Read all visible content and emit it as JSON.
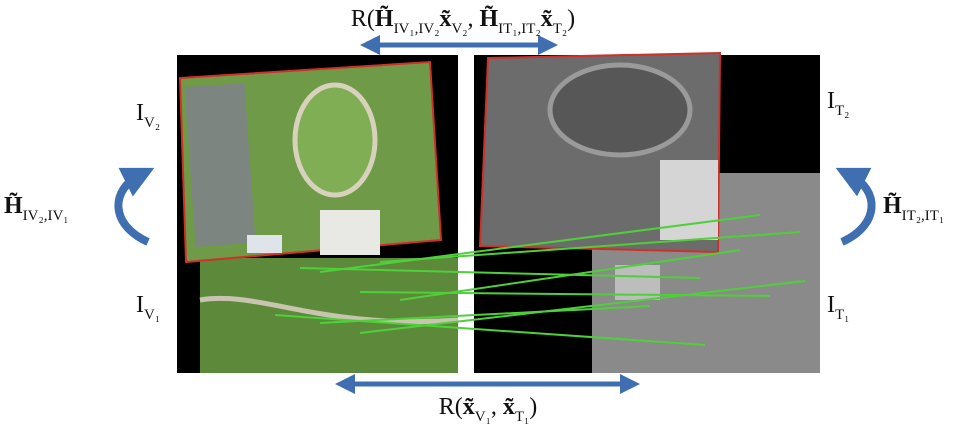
{
  "labels": {
    "top": {
      "parts": [
        {
          "text": "R("
        },
        {
          "text": "H̃",
          "style": "bold"
        },
        {
          "text": "IV₁,IV₂",
          "style": "sub"
        },
        {
          "text": "x̃",
          "style": "bold"
        },
        {
          "text": "V₂",
          "style": "sub"
        },
        {
          "text": ", "
        },
        {
          "text": "H̃",
          "style": "bold"
        },
        {
          "text": "IT₁,IT₂",
          "style": "sub"
        },
        {
          "text": "x̃",
          "style": "bold"
        },
        {
          "text": "T₂",
          "style": "sub"
        },
        {
          "text": ")"
        }
      ]
    },
    "bottom": {
      "parts": [
        {
          "text": "R("
        },
        {
          "text": "x̃",
          "style": "bold"
        },
        {
          "text": "V₁",
          "style": "sub"
        },
        {
          "text": ", "
        },
        {
          "text": "x̃",
          "style": "bold"
        },
        {
          "text": "T₁",
          "style": "sub"
        },
        {
          "text": ")"
        }
      ]
    },
    "iv2": {
      "parts": [
        {
          "text": "I"
        },
        {
          "text": "V₂",
          "style": "sub"
        }
      ]
    },
    "iv1": {
      "parts": [
        {
          "text": "I"
        },
        {
          "text": "V₁",
          "style": "sub"
        }
      ]
    },
    "it2": {
      "parts": [
        {
          "text": "I"
        },
        {
          "text": "T₂",
          "style": "sub"
        }
      ]
    },
    "it1": {
      "parts": [
        {
          "text": "I"
        },
        {
          "text": "T₁",
          "style": "sub"
        }
      ]
    },
    "hv": {
      "parts": [
        {
          "text": "H̃",
          "style": "bold"
        },
        {
          "text": "IV₂,IV₁",
          "style": "sub"
        }
      ]
    },
    "ht": {
      "parts": [
        {
          "text": "H̃",
          "style": "bold"
        },
        {
          "text": "IT₂,IT₁",
          "style": "sub"
        }
      ]
    }
  }
}
